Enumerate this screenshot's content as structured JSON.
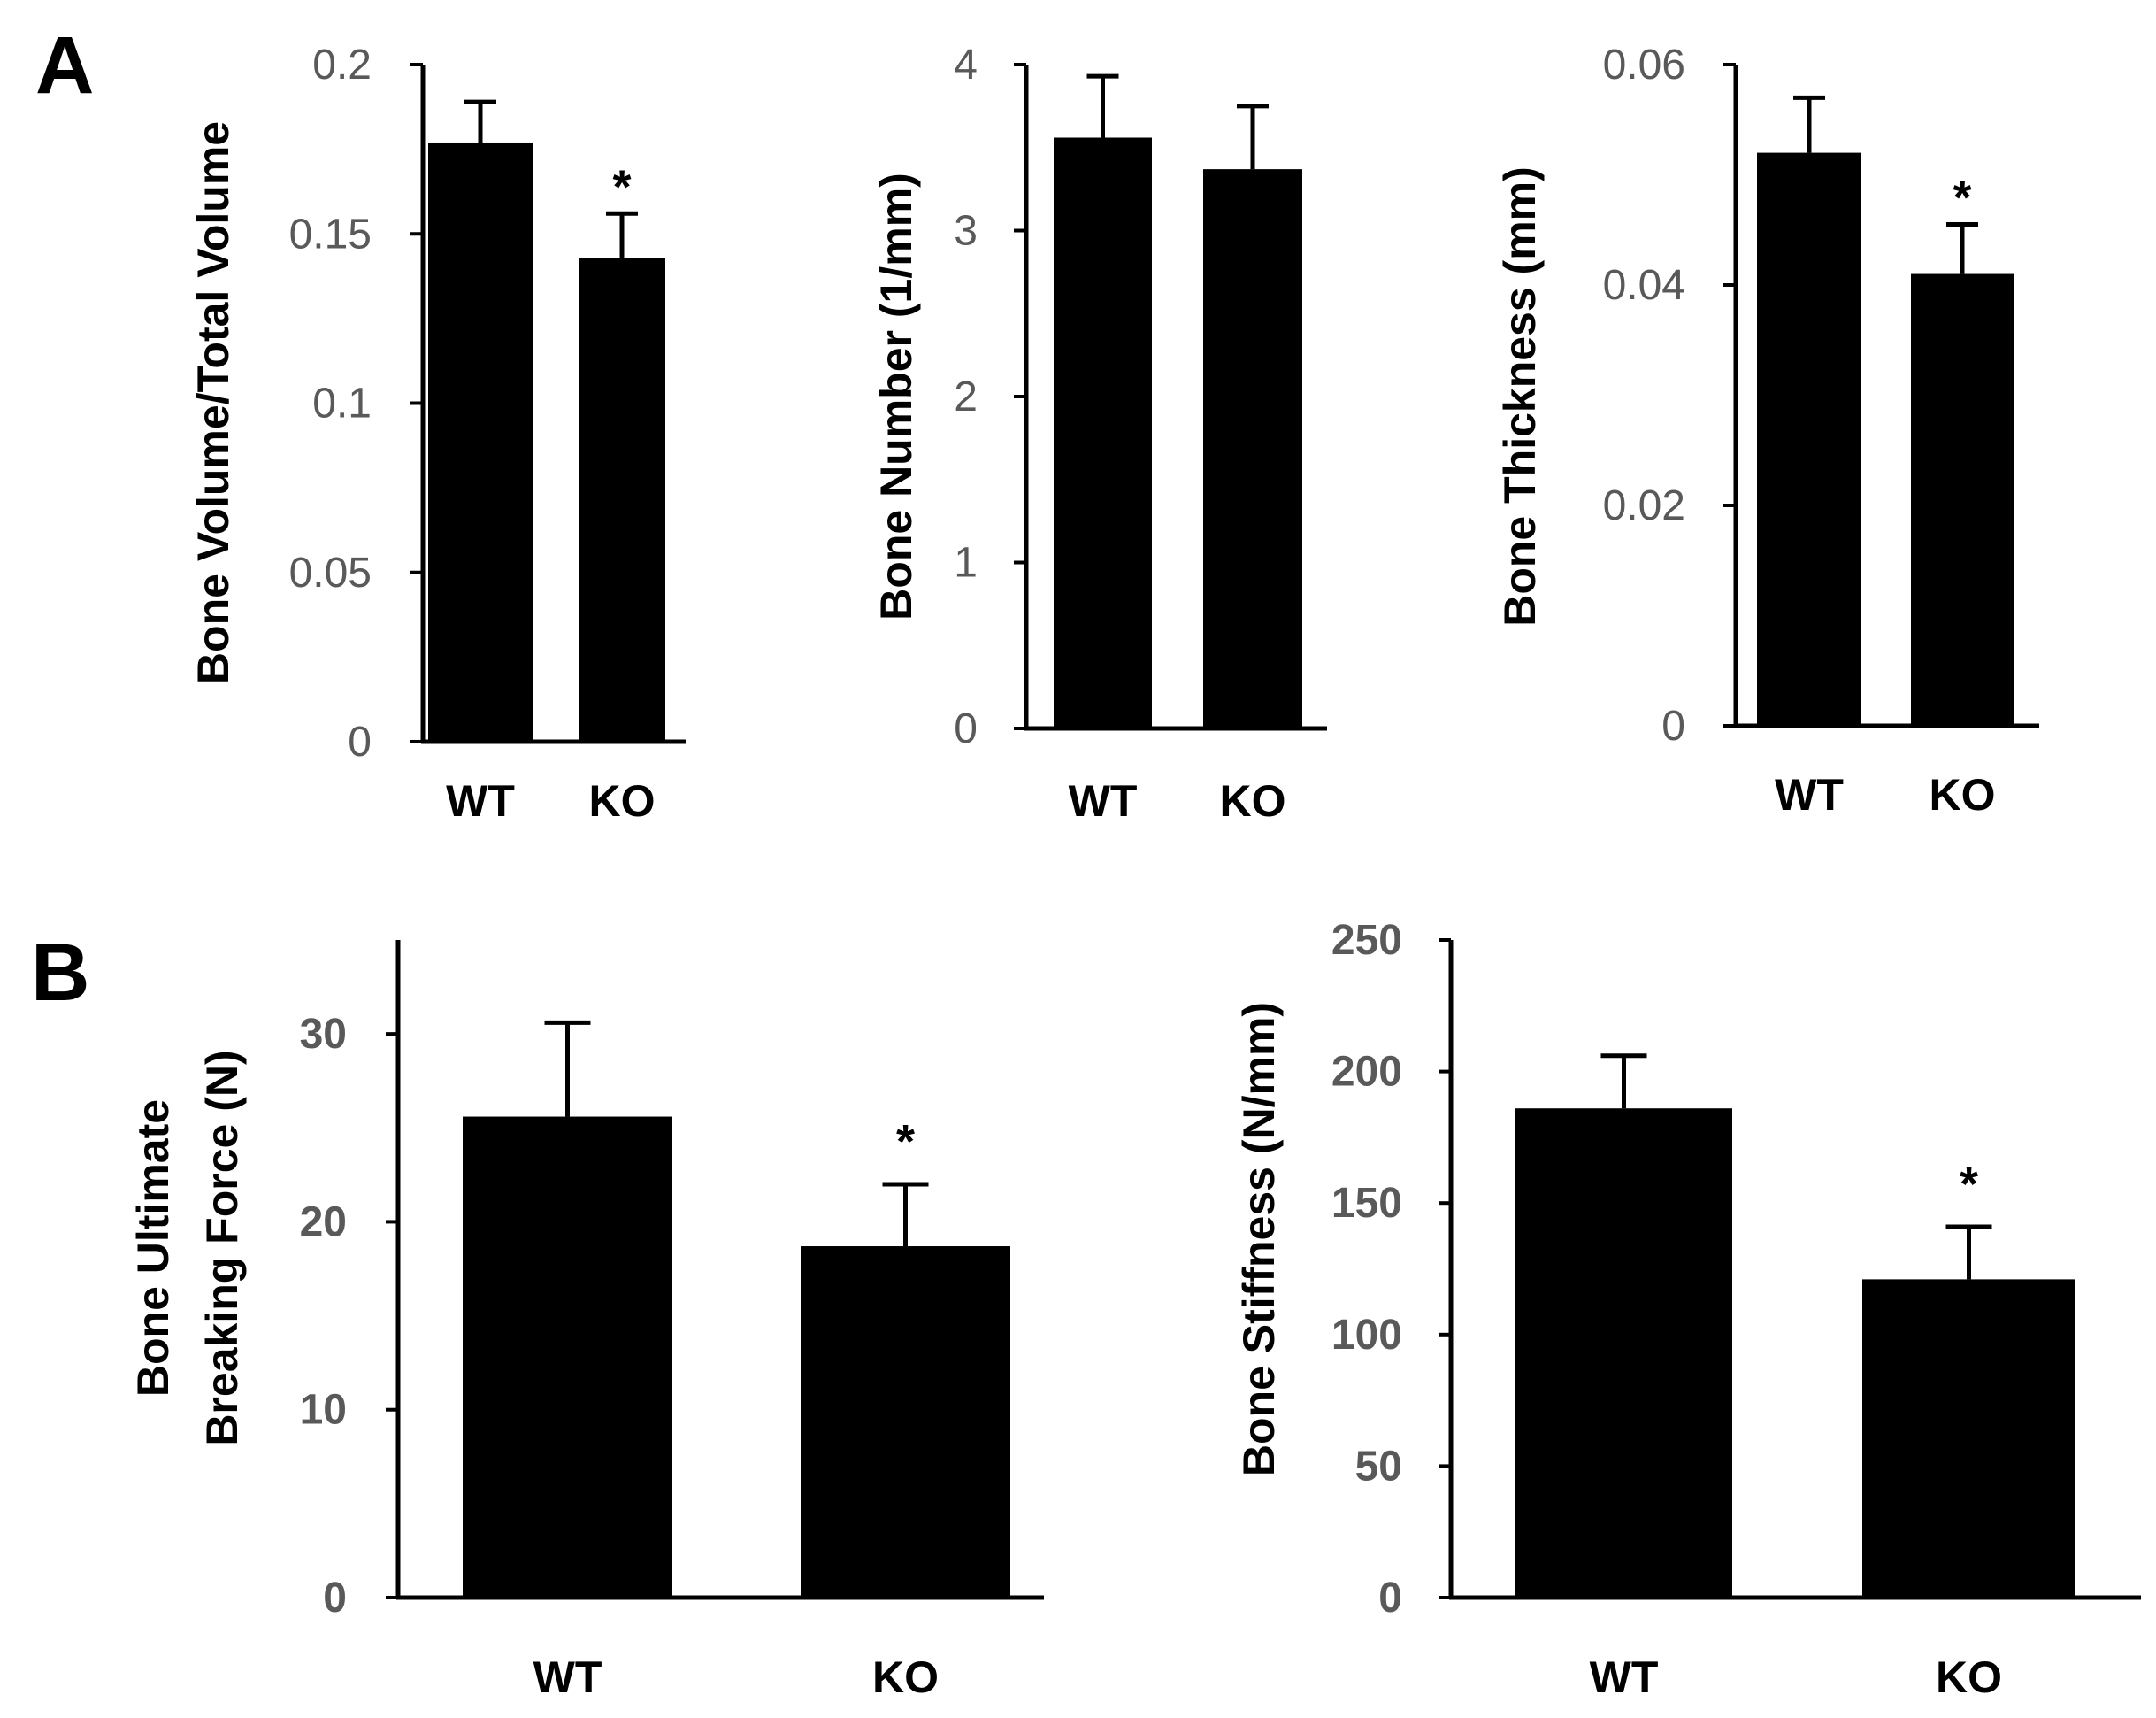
{
  "panels": [
    {
      "label": "A"
    },
    {
      "label": "B"
    }
  ],
  "chart_data": [
    {
      "type": "bar",
      "panel": "A",
      "categories": [
        "WT",
        "KO"
      ],
      "values": [
        0.177,
        0.143
      ],
      "errors": [
        0.012,
        0.013
      ],
      "significance": [
        "",
        "*"
      ],
      "ylabel": "Bone Volume/Total Volume",
      "ylim": [
        0,
        0.2
      ],
      "yticks": [
        "0",
        "0.05",
        "0.1",
        "0.15",
        "0.2"
      ],
      "tick_values": [
        0,
        0.05,
        0.1,
        0.15,
        0.2
      ],
      "grid": false,
      "bar_color": "#000000"
    },
    {
      "type": "bar",
      "panel": "A",
      "categories": [
        "WT",
        "KO"
      ],
      "values": [
        3.56,
        3.37
      ],
      "errors": [
        0.37,
        0.38
      ],
      "significance": [
        "",
        ""
      ],
      "ylabel": "Bone Number (1/mm)",
      "ylim": [
        0,
        4
      ],
      "yticks": [
        "0",
        "1",
        "2",
        "3",
        "4"
      ],
      "tick_values": [
        0,
        1,
        2,
        3,
        4
      ],
      "grid": false,
      "bar_color": "#000000"
    },
    {
      "type": "bar",
      "panel": "A",
      "categories": [
        "WT",
        "KO"
      ],
      "values": [
        0.052,
        0.041
      ],
      "errors": [
        0.005,
        0.0045
      ],
      "significance": [
        "",
        "*"
      ],
      "ylabel": "Bone Thickness (mm)",
      "ylim": [
        0,
        0.06
      ],
      "yticks": [
        "0",
        "0.02",
        "0.04",
        "0.06"
      ],
      "tick_values": [
        0,
        0.02,
        0.04,
        0.06
      ],
      "grid": false,
      "bar_color": "#000000"
    },
    {
      "type": "bar",
      "panel": "B",
      "categories": [
        "WT",
        "KO"
      ],
      "values": [
        25.6,
        18.7
      ],
      "errors": [
        5.0,
        3.3
      ],
      "significance": [
        "",
        "*"
      ],
      "ylabel": [
        "Bone Ultimate",
        "Breaking Force (N)"
      ],
      "ylim": [
        0,
        35
      ],
      "yticks": [
        "0",
        "10",
        "20",
        "30"
      ],
      "tick_values": [
        0,
        10,
        20,
        30
      ],
      "grid": false,
      "bar_color": "#000000"
    },
    {
      "type": "bar",
      "panel": "B",
      "categories": [
        "WT",
        "KO"
      ],
      "values": [
        186,
        121
      ],
      "errors": [
        20,
        20
      ],
      "significance": [
        "",
        "*"
      ],
      "ylabel": "Bone Stiffness (N/mm)",
      "ylim": [
        0,
        250
      ],
      "yticks": [
        "0",
        "50",
        "100",
        "150",
        "200",
        "250"
      ],
      "tick_values": [
        0,
        50,
        100,
        150,
        200,
        250
      ],
      "grid": false,
      "bar_color": "#000000"
    }
  ]
}
